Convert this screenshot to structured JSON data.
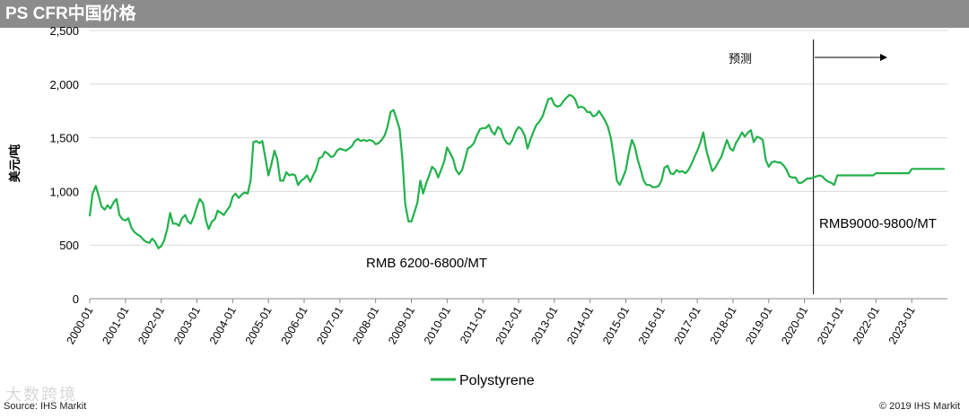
{
  "header": {
    "title": "PS CFR中国价格"
  },
  "footer": {
    "source": "Source: IHS Markit",
    "copyright": "© 2019 IHS Markit"
  },
  "watermark": {
    "text": "大数跨境"
  },
  "chart_data": {
    "type": "line",
    "title": "PS CFR中国价格",
    "ylabel": "美元/吨",
    "xlabel": "",
    "ylim": [
      0,
      2500
    ],
    "yticks": [
      0,
      500,
      1000,
      1500,
      2000,
      2500
    ],
    "ytick_labels": [
      "0",
      "500",
      "1,000",
      "1,500",
      "2,000",
      "2,500"
    ],
    "xlim": [
      2000.0,
      2024.0
    ],
    "xtick_labels": [
      "2000-01",
      "2001-01",
      "2002-01",
      "2003-01",
      "2004-01",
      "2005-01",
      "2006-01",
      "2007-01",
      "2008-01",
      "2009-01",
      "2010-01",
      "2011-01",
      "2012-01",
      "2013-01",
      "2014-01",
      "2015-01",
      "2016-01",
      "2017-01",
      "2018-01",
      "2019-01",
      "2020-01",
      "2021-01",
      "2022-01",
      "2023-01"
    ],
    "grid": true,
    "legend_position": "bottom",
    "forecast": {
      "x": 2020.25,
      "label": "预测"
    },
    "annotations": [
      {
        "text": "RMB 6200-6800/MT"
      },
      {
        "text": "RMB9000-9800/MT"
      }
    ],
    "series": [
      {
        "name": "Polystyrene",
        "color": "#22b14c",
        "points": [
          [
            2000.0,
            770
          ],
          [
            2000.08,
            980
          ],
          [
            2000.17,
            1050
          ],
          [
            2000.25,
            960
          ],
          [
            2000.33,
            860
          ],
          [
            2000.42,
            830
          ],
          [
            2000.5,
            870
          ],
          [
            2000.58,
            840
          ],
          [
            2000.67,
            900
          ],
          [
            2000.75,
            930
          ],
          [
            2000.83,
            780
          ],
          [
            2000.92,
            740
          ],
          [
            2001.0,
            730
          ],
          [
            2001.08,
            750
          ],
          [
            2001.17,
            660
          ],
          [
            2001.25,
            620
          ],
          [
            2001.33,
            600
          ],
          [
            2001.42,
            580
          ],
          [
            2001.5,
            550
          ],
          [
            2001.58,
            530
          ],
          [
            2001.67,
            520
          ],
          [
            2001.75,
            560
          ],
          [
            2001.83,
            530
          ],
          [
            2001.92,
            470
          ],
          [
            2002.0,
            490
          ],
          [
            2002.08,
            540
          ],
          [
            2002.17,
            650
          ],
          [
            2002.25,
            800
          ],
          [
            2002.33,
            700
          ],
          [
            2002.42,
            700
          ],
          [
            2002.5,
            680
          ],
          [
            2002.58,
            750
          ],
          [
            2002.67,
            780
          ],
          [
            2002.75,
            720
          ],
          [
            2002.83,
            700
          ],
          [
            2002.92,
            770
          ],
          [
            2003.0,
            860
          ],
          [
            2003.08,
            930
          ],
          [
            2003.17,
            890
          ],
          [
            2003.25,
            730
          ],
          [
            2003.33,
            650
          ],
          [
            2003.42,
            720
          ],
          [
            2003.5,
            740
          ],
          [
            2003.58,
            820
          ],
          [
            2003.67,
            800
          ],
          [
            2003.75,
            780
          ],
          [
            2003.83,
            820
          ],
          [
            2003.92,
            860
          ],
          [
            2004.0,
            950
          ],
          [
            2004.08,
            980
          ],
          [
            2004.17,
            940
          ],
          [
            2004.25,
            970
          ],
          [
            2004.33,
            990
          ],
          [
            2004.42,
            980
          ],
          [
            2004.5,
            1100
          ],
          [
            2004.58,
            1460
          ],
          [
            2004.67,
            1470
          ],
          [
            2004.75,
            1450
          ],
          [
            2004.83,
            1470
          ],
          [
            2004.92,
            1300
          ],
          [
            2005.0,
            1150
          ],
          [
            2005.08,
            1250
          ],
          [
            2005.17,
            1380
          ],
          [
            2005.25,
            1300
          ],
          [
            2005.33,
            1100
          ],
          [
            2005.42,
            1100
          ],
          [
            2005.5,
            1180
          ],
          [
            2005.58,
            1150
          ],
          [
            2005.67,
            1160
          ],
          [
            2005.75,
            1150
          ],
          [
            2005.83,
            1060
          ],
          [
            2005.92,
            1100
          ],
          [
            2006.0,
            1120
          ],
          [
            2006.08,
            1150
          ],
          [
            2006.17,
            1090
          ],
          [
            2006.25,
            1150
          ],
          [
            2006.33,
            1200
          ],
          [
            2006.42,
            1310
          ],
          [
            2006.5,
            1320
          ],
          [
            2006.58,
            1370
          ],
          [
            2006.67,
            1350
          ],
          [
            2006.75,
            1320
          ],
          [
            2006.83,
            1330
          ],
          [
            2006.92,
            1380
          ],
          [
            2007.0,
            1400
          ],
          [
            2007.08,
            1390
          ],
          [
            2007.17,
            1380
          ],
          [
            2007.25,
            1400
          ],
          [
            2007.33,
            1420
          ],
          [
            2007.42,
            1470
          ],
          [
            2007.5,
            1490
          ],
          [
            2007.58,
            1470
          ],
          [
            2007.67,
            1480
          ],
          [
            2007.75,
            1470
          ],
          [
            2007.83,
            1480
          ],
          [
            2007.92,
            1470
          ],
          [
            2008.0,
            1440
          ],
          [
            2008.08,
            1450
          ],
          [
            2008.17,
            1480
          ],
          [
            2008.25,
            1520
          ],
          [
            2008.33,
            1600
          ],
          [
            2008.42,
            1740
          ],
          [
            2008.5,
            1760
          ],
          [
            2008.58,
            1680
          ],
          [
            2008.67,
            1580
          ],
          [
            2008.75,
            1300
          ],
          [
            2008.83,
            880
          ],
          [
            2008.92,
            720
          ],
          [
            2009.0,
            720
          ],
          [
            2009.08,
            800
          ],
          [
            2009.17,
            900
          ],
          [
            2009.25,
            1100
          ],
          [
            2009.33,
            980
          ],
          [
            2009.42,
            1080
          ],
          [
            2009.5,
            1150
          ],
          [
            2009.58,
            1230
          ],
          [
            2009.67,
            1200
          ],
          [
            2009.75,
            1130
          ],
          [
            2009.83,
            1200
          ],
          [
            2009.92,
            1280
          ],
          [
            2010.0,
            1410
          ],
          [
            2010.08,
            1360
          ],
          [
            2010.17,
            1300
          ],
          [
            2010.25,
            1200
          ],
          [
            2010.33,
            1160
          ],
          [
            2010.42,
            1200
          ],
          [
            2010.5,
            1300
          ],
          [
            2010.58,
            1400
          ],
          [
            2010.67,
            1420
          ],
          [
            2010.75,
            1450
          ],
          [
            2010.83,
            1520
          ],
          [
            2010.92,
            1580
          ],
          [
            2011.0,
            1590
          ],
          [
            2011.08,
            1590
          ],
          [
            2011.17,
            1620
          ],
          [
            2011.25,
            1560
          ],
          [
            2011.33,
            1530
          ],
          [
            2011.42,
            1600
          ],
          [
            2011.5,
            1580
          ],
          [
            2011.58,
            1500
          ],
          [
            2011.67,
            1450
          ],
          [
            2011.75,
            1440
          ],
          [
            2011.83,
            1480
          ],
          [
            2011.92,
            1560
          ],
          [
            2012.0,
            1600
          ],
          [
            2012.08,
            1580
          ],
          [
            2012.17,
            1520
          ],
          [
            2012.25,
            1400
          ],
          [
            2012.33,
            1480
          ],
          [
            2012.42,
            1560
          ],
          [
            2012.5,
            1620
          ],
          [
            2012.58,
            1650
          ],
          [
            2012.67,
            1700
          ],
          [
            2012.75,
            1780
          ],
          [
            2012.83,
            1860
          ],
          [
            2012.92,
            1870
          ],
          [
            2013.0,
            1810
          ],
          [
            2013.08,
            1790
          ],
          [
            2013.17,
            1800
          ],
          [
            2013.25,
            1840
          ],
          [
            2013.33,
            1870
          ],
          [
            2013.42,
            1900
          ],
          [
            2013.5,
            1890
          ],
          [
            2013.58,
            1860
          ],
          [
            2013.67,
            1780
          ],
          [
            2013.75,
            1790
          ],
          [
            2013.83,
            1780
          ],
          [
            2013.92,
            1740
          ],
          [
            2014.0,
            1740
          ],
          [
            2014.08,
            1700
          ],
          [
            2014.17,
            1710
          ],
          [
            2014.25,
            1750
          ],
          [
            2014.33,
            1710
          ],
          [
            2014.42,
            1660
          ],
          [
            2014.5,
            1600
          ],
          [
            2014.58,
            1500
          ],
          [
            2014.67,
            1300
          ],
          [
            2014.75,
            1100
          ],
          [
            2014.83,
            1060
          ],
          [
            2014.92,
            1130
          ],
          [
            2015.0,
            1200
          ],
          [
            2015.08,
            1350
          ],
          [
            2015.17,
            1480
          ],
          [
            2015.25,
            1420
          ],
          [
            2015.33,
            1300
          ],
          [
            2015.42,
            1200
          ],
          [
            2015.5,
            1100
          ],
          [
            2015.58,
            1060
          ],
          [
            2015.67,
            1060
          ],
          [
            2015.75,
            1040
          ],
          [
            2015.83,
            1040
          ],
          [
            2015.92,
            1050
          ],
          [
            2016.0,
            1100
          ],
          [
            2016.08,
            1220
          ],
          [
            2016.17,
            1240
          ],
          [
            2016.25,
            1170
          ],
          [
            2016.33,
            1160
          ],
          [
            2016.42,
            1200
          ],
          [
            2016.5,
            1180
          ],
          [
            2016.58,
            1190
          ],
          [
            2016.67,
            1170
          ],
          [
            2016.75,
            1200
          ],
          [
            2016.83,
            1250
          ],
          [
            2016.92,
            1320
          ],
          [
            2017.0,
            1380
          ],
          [
            2017.08,
            1450
          ],
          [
            2017.17,
            1550
          ],
          [
            2017.25,
            1390
          ],
          [
            2017.33,
            1290
          ],
          [
            2017.42,
            1190
          ],
          [
            2017.5,
            1220
          ],
          [
            2017.58,
            1270
          ],
          [
            2017.67,
            1320
          ],
          [
            2017.75,
            1400
          ],
          [
            2017.83,
            1480
          ],
          [
            2017.92,
            1400
          ],
          [
            2018.0,
            1380
          ],
          [
            2018.08,
            1450
          ],
          [
            2018.17,
            1500
          ],
          [
            2018.25,
            1550
          ],
          [
            2018.33,
            1510
          ],
          [
            2018.42,
            1550
          ],
          [
            2018.5,
            1570
          ],
          [
            2018.58,
            1460
          ],
          [
            2018.67,
            1510
          ],
          [
            2018.75,
            1500
          ],
          [
            2018.83,
            1480
          ],
          [
            2018.92,
            1290
          ],
          [
            2019.0,
            1230
          ],
          [
            2019.08,
            1270
          ],
          [
            2019.17,
            1280
          ],
          [
            2019.25,
            1270
          ],
          [
            2019.33,
            1270
          ],
          [
            2019.42,
            1240
          ],
          [
            2019.5,
            1200
          ],
          [
            2019.58,
            1140
          ],
          [
            2019.67,
            1130
          ],
          [
            2019.75,
            1130
          ],
          [
            2019.83,
            1080
          ],
          [
            2019.92,
            1080
          ],
          [
            2020.0,
            1100
          ],
          [
            2020.08,
            1120
          ],
          [
            2020.17,
            1120
          ],
          [
            2020.25,
            1130
          ],
          [
            2020.33,
            1140
          ],
          [
            2020.42,
            1150
          ],
          [
            2020.5,
            1140
          ],
          [
            2020.58,
            1110
          ],
          [
            2020.67,
            1090
          ],
          [
            2020.75,
            1080
          ],
          [
            2020.83,
            1060
          ],
          [
            2020.92,
            1150
          ],
          [
            2021.0,
            1150
          ],
          [
            2021.5,
            1150
          ],
          [
            2021.92,
            1150
          ],
          [
            2022.0,
            1170
          ],
          [
            2022.5,
            1170
          ],
          [
            2022.92,
            1170
          ],
          [
            2023.0,
            1210
          ],
          [
            2023.5,
            1210
          ],
          [
            2023.92,
            1210
          ]
        ]
      }
    ]
  }
}
